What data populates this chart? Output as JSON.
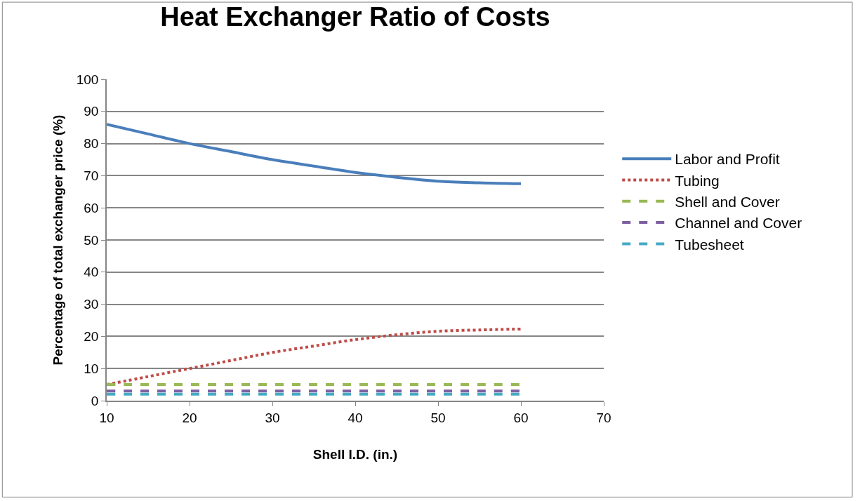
{
  "chart_data": {
    "type": "line",
    "title": "Heat Exchanger Ratio of Costs",
    "xlabel": "Shell I.D. (in.)",
    "ylabel": "Percentage of total exchanger price (%)",
    "x": [
      10,
      15,
      20,
      25,
      30,
      35,
      40,
      45,
      50,
      55,
      60
    ],
    "series": [
      {
        "name": "Labor and Profit",
        "color": "#4a7ebb",
        "line_style": "solid",
        "values": [
          86,
          83,
          80,
          77.5,
          75,
          73,
          71,
          69.5,
          68.3,
          67.8,
          67.5
        ]
      },
      {
        "name": "Tubing",
        "color": "#be4b48",
        "line_style": "dotted",
        "values": [
          5,
          7.5,
          10,
          12.5,
          15,
          17,
          19,
          20.5,
          21.6,
          22,
          22.3
        ]
      },
      {
        "name": "Shell and Cover",
        "color": "#98b954",
        "line_style": "dashed",
        "values": [
          5,
          5,
          5,
          5,
          5,
          5,
          5,
          5,
          5,
          5,
          5
        ]
      },
      {
        "name": "Channel and Cover",
        "color": "#7d60a0",
        "line_style": "dashed",
        "values": [
          3,
          3,
          3,
          3,
          3,
          3,
          3,
          3,
          3,
          3,
          3
        ]
      },
      {
        "name": "Tubesheet",
        "color": "#46aac5",
        "line_style": "dashed",
        "values": [
          2,
          2,
          2,
          2,
          2,
          2,
          2,
          2,
          2,
          2,
          2
        ]
      }
    ],
    "xlim": [
      10,
      70
    ],
    "xticks": [
      10,
      20,
      30,
      40,
      50,
      60,
      70
    ],
    "ylim": [
      0,
      100
    ],
    "yticks": [
      0,
      10,
      20,
      30,
      40,
      50,
      60,
      70,
      80,
      90,
      100
    ],
    "grid": "y",
    "legend": "right",
    "marker": "none"
  }
}
